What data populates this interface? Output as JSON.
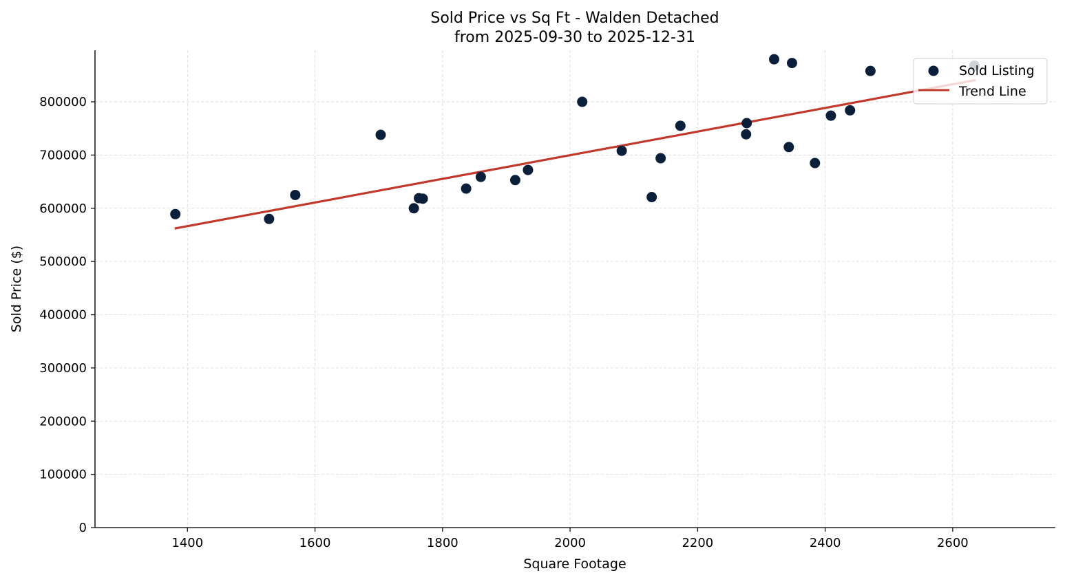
{
  "chart_data": {
    "type": "scatter",
    "title": "Sold Price vs Sq Ft - Walden Detached",
    "subtitle": "from 2025-09-30 to 2025-12-31",
    "xlabel": "Square Footage",
    "ylabel": "Sold Price ($)",
    "xlim": [
      1255,
      2761
    ],
    "ylim": [
      0,
      897000
    ],
    "xticks": [
      1400,
      1600,
      1800,
      2000,
      2200,
      2400,
      2600
    ],
    "yticks": [
      0,
      100000,
      200000,
      300000,
      400000,
      500000,
      600000,
      700000,
      800000
    ],
    "grid": true,
    "legend_position": "top-right",
    "series": [
      {
        "name": "Sold Listing",
        "type": "scatter",
        "color": "#0b1f3a",
        "points": [
          [
            1381,
            589000
          ],
          [
            1528,
            580000
          ],
          [
            1569,
            625000
          ],
          [
            1703,
            738000
          ],
          [
            1755,
            600000
          ],
          [
            1763,
            619000
          ],
          [
            1769,
            618000
          ],
          [
            1837,
            637000
          ],
          [
            1860,
            659000
          ],
          [
            1914,
            653000
          ],
          [
            1934,
            672000
          ],
          [
            2019,
            800000
          ],
          [
            2081,
            708000
          ],
          [
            2128,
            621000
          ],
          [
            2142,
            694000
          ],
          [
            2173,
            755000
          ],
          [
            2276,
            739000
          ],
          [
            2277,
            760000
          ],
          [
            2320,
            880000
          ],
          [
            2343,
            715000
          ],
          [
            2348,
            873000
          ],
          [
            2384,
            685000
          ],
          [
            2409,
            774000
          ],
          [
            2439,
            784000
          ],
          [
            2471,
            858000
          ],
          [
            2634,
            868000
          ]
        ]
      },
      {
        "name": "Trend Line",
        "type": "line",
        "color": "#c0392b",
        "points": [
          [
            1380,
            562000
          ],
          [
            2636,
            841000
          ]
        ]
      }
    ]
  }
}
